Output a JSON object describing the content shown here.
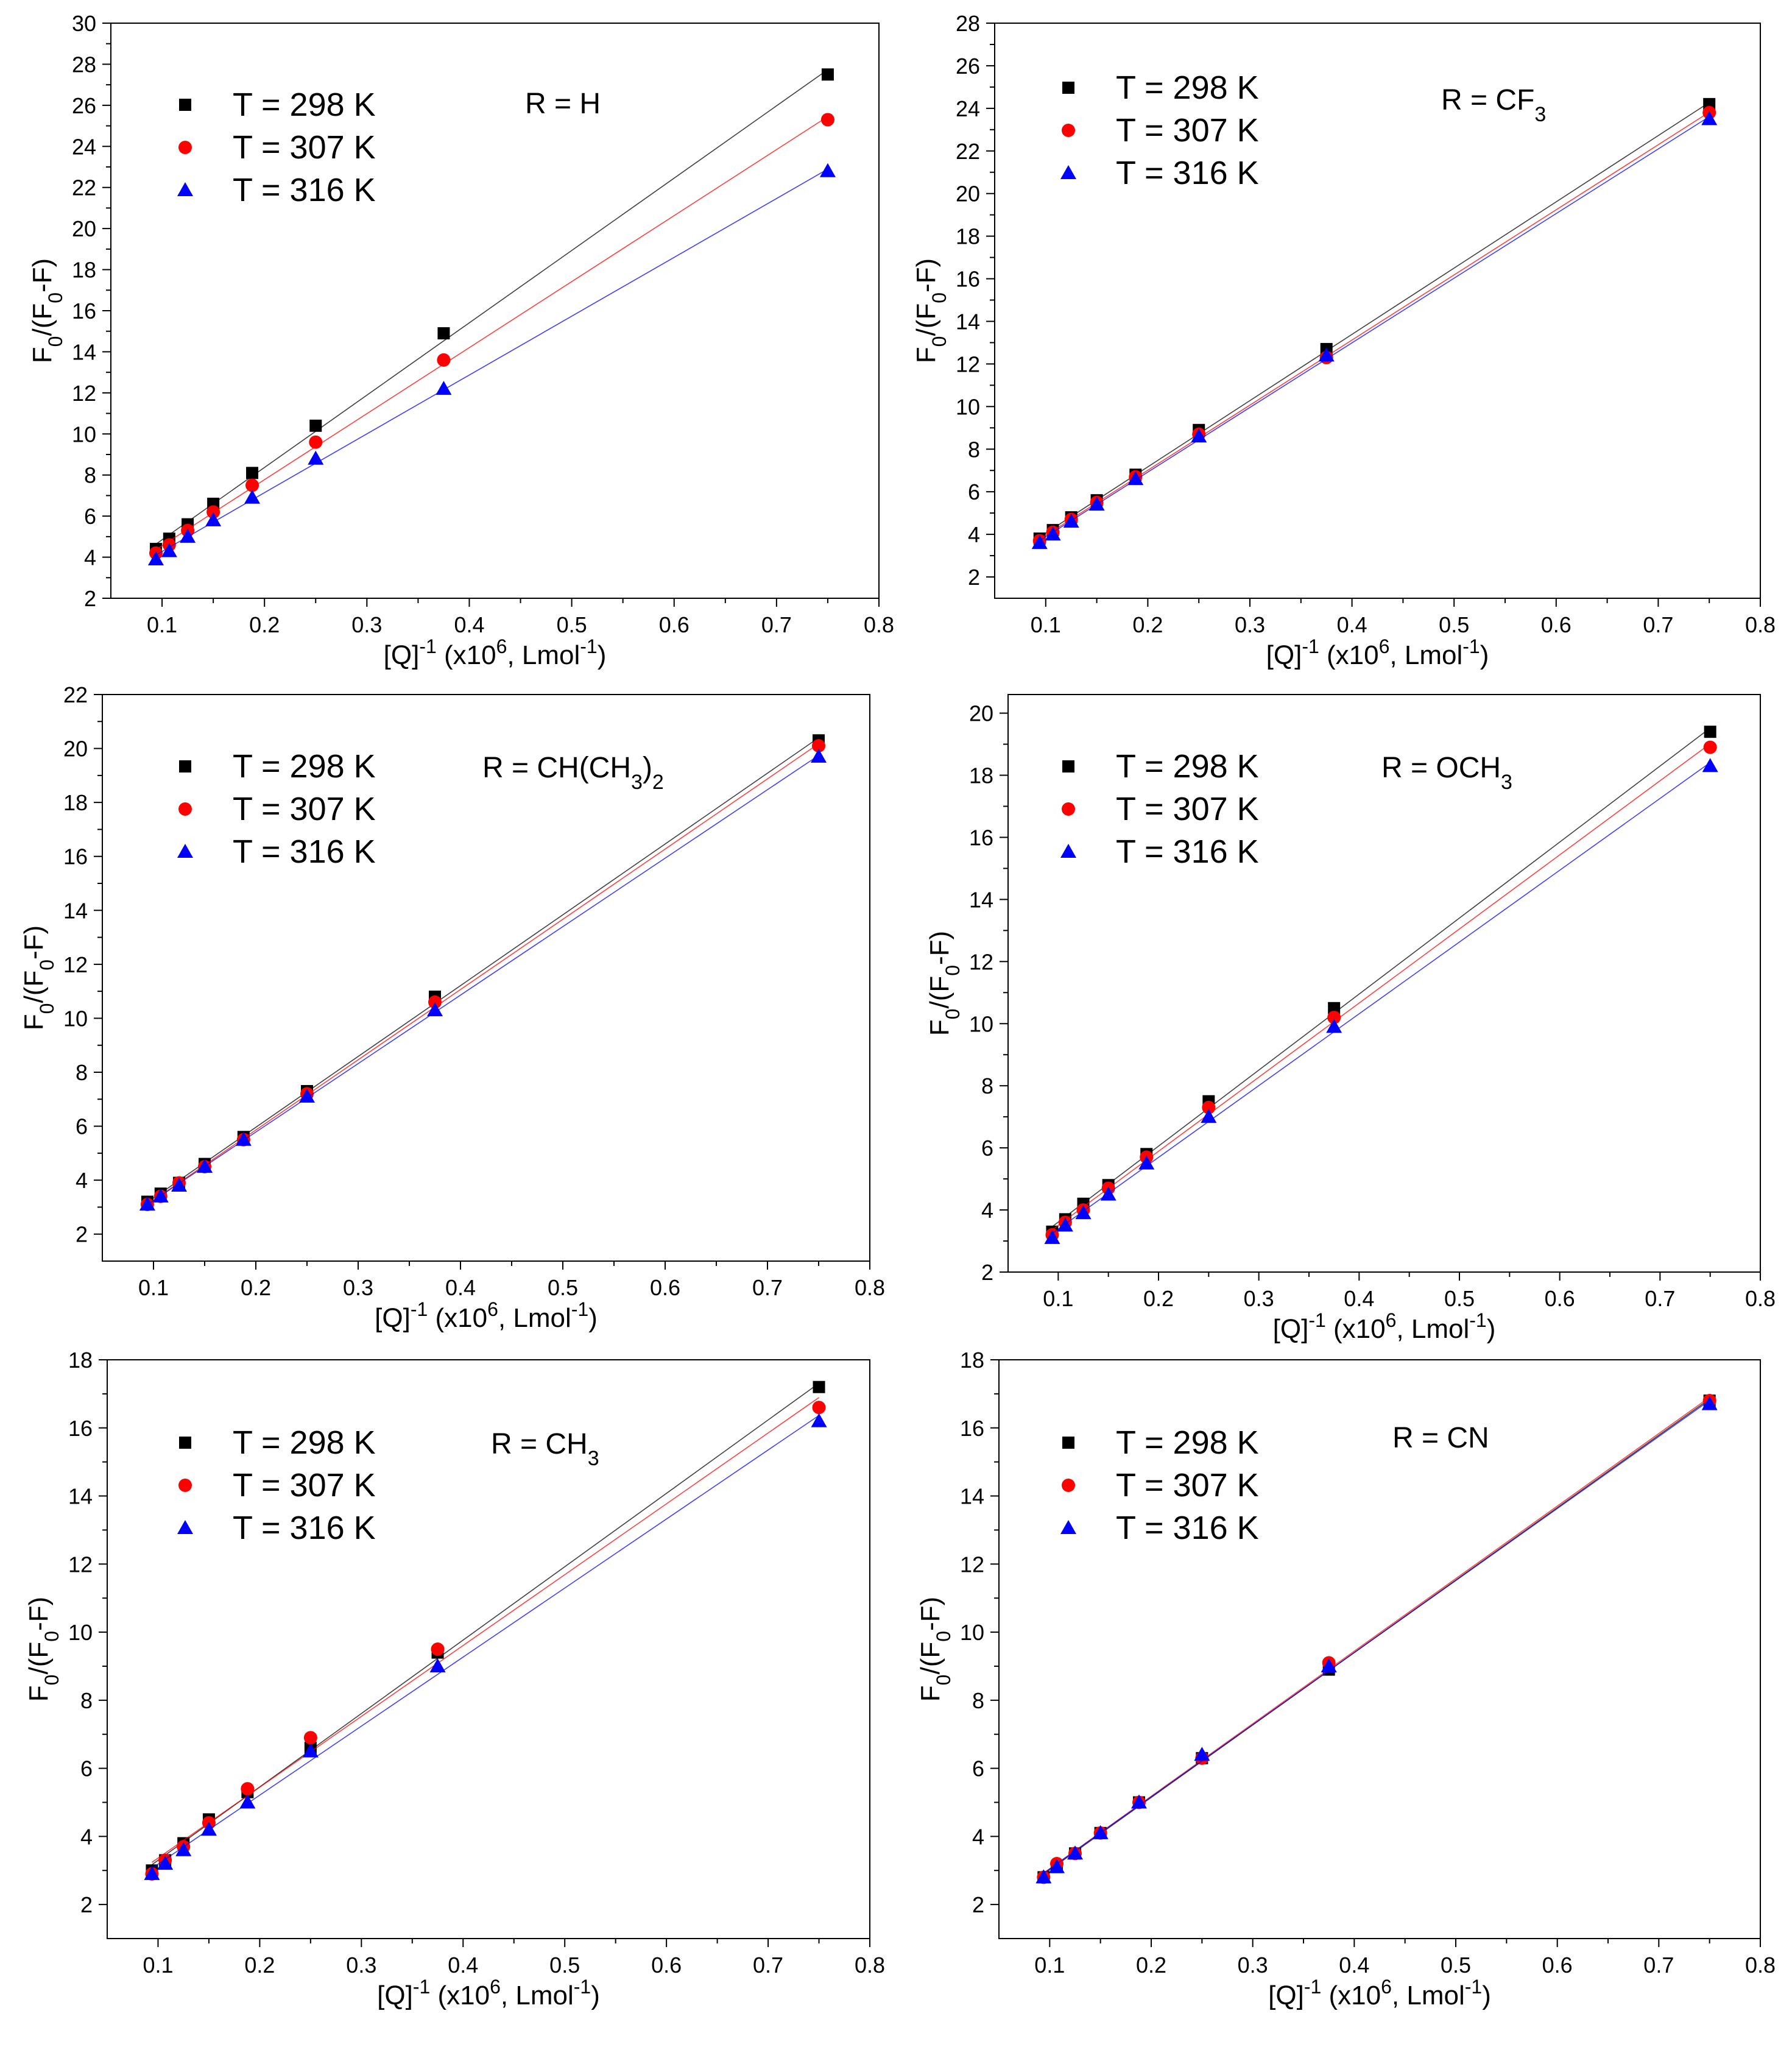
{
  "legend_labels": [
    "T = 298 K",
    "T = 307 K",
    "T = 316 K"
  ],
  "colors": {
    "T298": "#000000",
    "T307": "#ff0000",
    "T316": "#0000ff"
  },
  "chart_data": [
    {
      "type": "scatter",
      "panel": "top-left",
      "title_parts": [
        [
          "R = H",
          ""
        ]
      ],
      "x": [
        0.094,
        0.107,
        0.125,
        0.15,
        0.188,
        0.25,
        0.375,
        0.75
      ],
      "series": [
        {
          "name": "T = 298 K",
          "values": [
            4.4,
            4.9,
            5.6,
            6.6,
            8.1,
            10.4,
            14.9,
            27.5
          ]
        },
        {
          "name": "T = 307 K",
          "values": [
            4.2,
            4.6,
            5.3,
            6.2,
            7.5,
            9.6,
            13.6,
            25.3
          ]
        },
        {
          "name": "T = 316 K",
          "values": [
            3.9,
            4.3,
            5.0,
            5.8,
            6.9,
            8.8,
            12.2,
            22.8
          ]
        }
      ],
      "xlim": [
        0.05,
        0.8
      ],
      "ylim": [
        2,
        30
      ],
      "xticks": [
        "0.1",
        "0.2",
        "0.3",
        "0.4",
        "0.5",
        "0.6",
        "0.7",
        "0.8"
      ],
      "yticks": [
        "2",
        "4",
        "6",
        "8",
        "10",
        "12",
        "14",
        "16",
        "18",
        "20",
        "22",
        "24",
        "26",
        "28",
        "30"
      ]
    },
    {
      "type": "scatter",
      "panel": "top-right",
      "title_parts": [
        [
          "R = CF",
          ""
        ],
        [
          "3",
          "sub"
        ]
      ],
      "x": [
        0.094,
        0.107,
        0.125,
        0.15,
        0.188,
        0.25,
        0.375,
        0.75
      ],
      "series": [
        {
          "name": "T = 298 K",
          "values": [
            3.8,
            4.2,
            4.8,
            5.6,
            6.8,
            8.9,
            12.7,
            24.2
          ]
        },
        {
          "name": "T = 307 K",
          "values": [
            3.7,
            4.1,
            4.7,
            5.5,
            6.7,
            8.7,
            12.3,
            23.8
          ]
        },
        {
          "name": "T = 316 K",
          "values": [
            3.6,
            4.0,
            4.6,
            5.4,
            6.6,
            8.6,
            12.4,
            23.5
          ]
        }
      ],
      "xlim": [
        0.05,
        0.8
      ],
      "ylim": [
        1,
        28
      ],
      "xticks": [
        "0.1",
        "0.2",
        "0.3",
        "0.4",
        "0.5",
        "0.6",
        "0.7",
        "0.8"
      ],
      "yticks": [
        "2",
        "4",
        "6",
        "8",
        "10",
        "12",
        "14",
        "16",
        "18",
        "20",
        "22",
        "24",
        "26",
        "28"
      ]
    },
    {
      "type": "scatter",
      "panel": "middle-left",
      "title_parts": [
        [
          "R = CH(CH",
          ""
        ],
        [
          "3",
          "sub"
        ],
        [
          ")",
          ""
        ],
        [
          "2",
          "sub"
        ]
      ],
      "x": [
        0.094,
        0.107,
        0.125,
        0.15,
        0.188,
        0.25,
        0.375,
        0.75
      ],
      "series": [
        {
          "name": "T = 298 K",
          "values": [
            3.2,
            3.5,
            3.9,
            4.6,
            5.6,
            7.3,
            10.8,
            20.3
          ]
        },
        {
          "name": "T = 307 K",
          "values": [
            3.1,
            3.4,
            3.9,
            4.5,
            5.5,
            7.2,
            10.6,
            20.1
          ]
        },
        {
          "name": "T = 316 K",
          "values": [
            3.1,
            3.4,
            3.8,
            4.5,
            5.5,
            7.1,
            10.3,
            19.7
          ]
        }
      ],
      "xlim": [
        0.05,
        0.8
      ],
      "ylim": [
        1,
        22
      ],
      "xticks": [
        "0.1",
        "0.2",
        "0.3",
        "0.4",
        "0.5",
        "0.6",
        "0.7",
        "0.8"
      ],
      "yticks": [
        "2",
        "4",
        "6",
        "8",
        "10",
        "12",
        "14",
        "16",
        "18",
        "20",
        "22"
      ]
    },
    {
      "type": "scatter",
      "panel": "middle-right",
      "title_parts": [
        [
          "R = OCH",
          ""
        ],
        [
          "3",
          "sub"
        ]
      ],
      "x": [
        0.094,
        0.107,
        0.125,
        0.15,
        0.188,
        0.25,
        0.375,
        0.75
      ],
      "series": [
        {
          "name": "T = 298 K",
          "values": [
            3.3,
            3.7,
            4.2,
            4.8,
            5.8,
            7.5,
            10.5,
            19.4
          ]
        },
        {
          "name": "T = 307 K",
          "values": [
            3.2,
            3.6,
            4.0,
            4.7,
            5.7,
            7.3,
            10.2,
            18.9
          ]
        },
        {
          "name": "T = 316 K",
          "values": [
            3.1,
            3.5,
            3.9,
            4.5,
            5.5,
            7.0,
            9.9,
            18.3
          ]
        }
      ],
      "xlim": [
        0.05,
        0.8
      ],
      "ylim": [
        2,
        20.6
      ],
      "xticks": [
        "0.1",
        "0.2",
        "0.3",
        "0.4",
        "0.5",
        "0.6",
        "0.7",
        "0.8"
      ],
      "yticks": [
        "2",
        "4",
        "6",
        "8",
        "10",
        "12",
        "14",
        "16",
        "18",
        "20"
      ]
    },
    {
      "type": "scatter",
      "panel": "bottom-left",
      "title_parts": [
        [
          "R = CH",
          ""
        ],
        [
          "3",
          "sub"
        ]
      ],
      "x": [
        0.094,
        0.107,
        0.125,
        0.15,
        0.188,
        0.25,
        0.375,
        0.75
      ],
      "series": [
        {
          "name": "T = 298 K",
          "values": [
            3.0,
            3.3,
            3.8,
            4.5,
            5.3,
            6.6,
            9.4,
            17.2
          ]
        },
        {
          "name": "T = 307 K",
          "values": [
            2.9,
            3.3,
            3.7,
            4.4,
            5.4,
            6.9,
            9.5,
            16.6
          ]
        },
        {
          "name": "T = 316 K",
          "values": [
            2.9,
            3.2,
            3.6,
            4.2,
            5.0,
            6.5,
            9.0,
            16.2
          ]
        }
      ],
      "xlim": [
        0.05,
        0.8
      ],
      "ylim": [
        1,
        18
      ],
      "xticks": [
        "0.1",
        "0.2",
        "0.3",
        "0.4",
        "0.5",
        "0.6",
        "0.7",
        "0.8"
      ],
      "yticks": [
        "2",
        "4",
        "6",
        "8",
        "10",
        "12",
        "14",
        "16",
        "18"
      ]
    },
    {
      "type": "scatter",
      "panel": "bottom-right",
      "title_parts": [
        [
          "R = CN",
          ""
        ]
      ],
      "x": [
        0.094,
        0.107,
        0.125,
        0.15,
        0.188,
        0.25,
        0.375,
        0.75
      ],
      "series": [
        {
          "name": "T = 298 K",
          "values": [
            2.8,
            3.1,
            3.5,
            4.1,
            5.0,
            6.3,
            8.9,
            16.8
          ]
        },
        {
          "name": "T = 307 K",
          "values": [
            2.8,
            3.2,
            3.5,
            4.1,
            5.0,
            6.3,
            9.1,
            16.8
          ]
        },
        {
          "name": "T = 316 K",
          "values": [
            2.8,
            3.1,
            3.5,
            4.1,
            5.0,
            6.4,
            9.0,
            16.7
          ]
        }
      ],
      "xlim": [
        0.05,
        0.8
      ],
      "ylim": [
        1,
        18
      ],
      "xticks": [
        "0.1",
        "0.2",
        "0.3",
        "0.4",
        "0.5",
        "0.6",
        "0.7",
        "0.8"
      ],
      "yticks": [
        "2",
        "4",
        "6",
        "8",
        "10",
        "12",
        "14",
        "16",
        "18"
      ]
    }
  ],
  "xlabel_parts": [
    [
      "[Q]",
      ""
    ],
    [
      "-1",
      "sup"
    ],
    [
      " (x10",
      ""
    ],
    [
      "6",
      "sup"
    ],
    [
      ", Lmol",
      ""
    ],
    [
      "-1",
      "sup"
    ],
    [
      ")",
      ""
    ]
  ],
  "ylabel_parts": [
    [
      "F",
      ""
    ],
    [
      "0",
      "sub"
    ],
    [
      "/(F",
      ""
    ],
    [
      "0",
      "sub"
    ],
    [
      "-F)",
      ""
    ]
  ]
}
